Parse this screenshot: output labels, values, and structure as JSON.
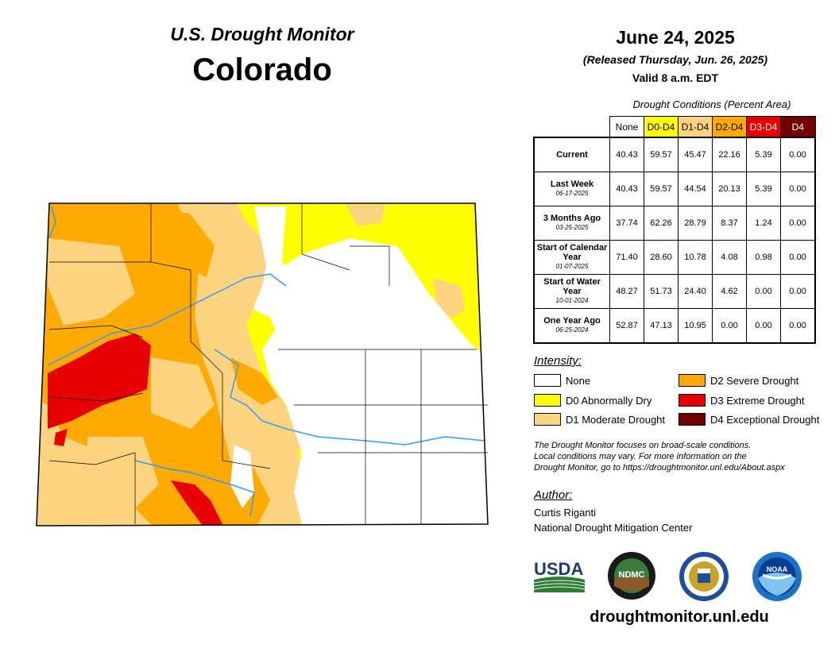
{
  "header": {
    "subtitle": "U.S. Drought Monitor",
    "state": "Colorado",
    "date": "June 24, 2025",
    "released": "(Released Thursday, Jun. 26, 2025)",
    "valid": "Valid 8 a.m. EDT"
  },
  "table": {
    "title": "Drought Conditions (Percent Area)",
    "columns": [
      "None",
      "D0-D4",
      "D1-D4",
      "D2-D4",
      "D3-D4",
      "D4"
    ],
    "column_colors": [
      "#ffffff",
      "#ffff00",
      "#fcd37f",
      "#ffaa00",
      "#e60000",
      "#730000"
    ],
    "rows": [
      {
        "label": "Current",
        "sublabel": "",
        "values": [
          "40.43",
          "59.57",
          "45.47",
          "22.16",
          "5.39",
          "0.00"
        ]
      },
      {
        "label": "Last Week",
        "sublabel": "06-17-2025",
        "values": [
          "40.43",
          "59.57",
          "44.54",
          "20.13",
          "5.39",
          "0.00"
        ]
      },
      {
        "label": "3 Months Ago",
        "sublabel": "03-25-2025",
        "values": [
          "37.74",
          "62.26",
          "28.79",
          "8.37",
          "1.24",
          "0.00"
        ]
      },
      {
        "label": "Start of Calendar Year",
        "sublabel": "01-07-2025",
        "values": [
          "71.40",
          "28.60",
          "10.78",
          "4.08",
          "0.98",
          "0.00"
        ]
      },
      {
        "label": "Start of Water Year",
        "sublabel": "10-01-2024",
        "values": [
          "48.27",
          "51.73",
          "24.40",
          "4.62",
          "0.00",
          "0.00"
        ]
      },
      {
        "label": "One Year Ago",
        "sublabel": "06-25-2024",
        "values": [
          "52.87",
          "47.13",
          "10.95",
          "0.00",
          "0.00",
          "0.00"
        ]
      }
    ]
  },
  "legend": {
    "title": "Intensity:",
    "items": [
      {
        "label": "None",
        "color": "#ffffff"
      },
      {
        "label": "D0 Abnormally Dry",
        "color": "#ffff00"
      },
      {
        "label": "D1 Moderate Drought",
        "color": "#fcd37f"
      },
      {
        "label": "D2 Severe Drought",
        "color": "#ffaa00"
      },
      {
        "label": "D3 Extreme Drought",
        "color": "#e60000"
      },
      {
        "label": "D4 Exceptional Drought",
        "color": "#730000"
      }
    ]
  },
  "note": {
    "line1": "The Drought Monitor focuses on broad-scale conditions.",
    "line2": "Local conditions may vary. For more information on the",
    "line3": "Drought Monitor, go to https://droughtmonitor.unl.edu/About.aspx"
  },
  "author": {
    "title": "Author:",
    "name": "Curtis Riganti",
    "org": "National Drought Mitigation Center"
  },
  "logos": {
    "usda": "USDA",
    "ndmc": "NDMC",
    "noaa": "NOAA"
  },
  "footer": {
    "url": "droughtmonitor.unl.edu"
  }
}
